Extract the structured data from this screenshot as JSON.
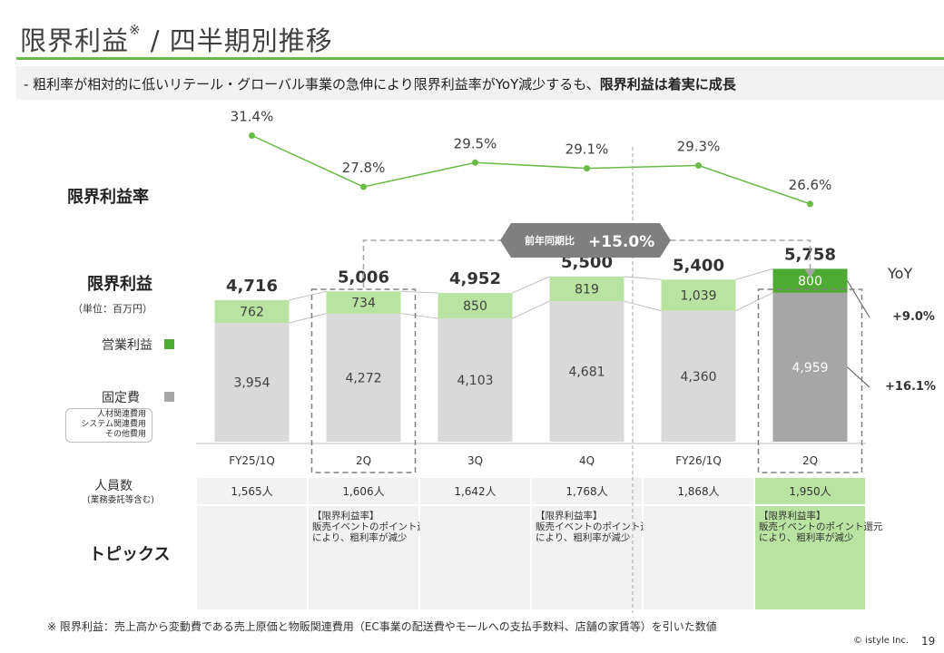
{
  "header": {
    "title": "限界利益",
    "title_mark": "※",
    "title_rest": " / 四半期別推移",
    "subtitle_plain": "- 粗利率が相対的に低いリテール・グローバル事業の急伸により限界利益率がYoY減少するも、",
    "subtitle_bold": "限界利益は着実に成長"
  },
  "labels": {
    "margin_rate": "限界利益率",
    "marginal_profit": "限界利益",
    "unit": "（単位：百万円）",
    "legend_operating": "営業利益",
    "legend_fixed": "固定費",
    "fixed_breakdown": [
      "人材関連費用",
      "システム関連費用",
      "その他費用"
    ],
    "headcount": "人員数",
    "headcount_note": "(業務委託等含む)",
    "topics": "トピックス",
    "yoy": "YoY",
    "yoy_profit": "+9.0%",
    "yoy_fixed": "+16.1%",
    "callout_label": "前年同期比",
    "callout_value": "+15.0%"
  },
  "chart_data": {
    "type": "bar",
    "categories": [
      "FY25/1Q",
      "2Q",
      "3Q",
      "4Q",
      "FY26/1Q",
      "2Q"
    ],
    "series": [
      {
        "name": "固定費",
        "values": [
          3954,
          4272,
          4103,
          4681,
          4360,
          4959
        ]
      },
      {
        "name": "営業利益",
        "values": [
          762,
          734,
          850,
          819,
          1039,
          800
        ]
      }
    ],
    "totals": [
      4716,
      5006,
      4952,
      5500,
      5400,
      5758
    ],
    "totals_text": [
      "4,716",
      "5,006",
      "4,952",
      "5,500",
      "5,400",
      "5,758"
    ],
    "fixed_text": [
      "3,954",
      "4,272",
      "4,103",
      "4,681",
      "4,360",
      "4,959"
    ],
    "profit_text": [
      "762",
      "734",
      "850",
      "819",
      "1,039",
      "800"
    ],
    "rate": {
      "name": "限界利益率",
      "values": [
        31.4,
        27.8,
        29.5,
        29.1,
        29.3,
        26.6
      ],
      "text": [
        "31.4%",
        "27.8%",
        "29.5%",
        "29.1%",
        "29.3%",
        "26.6%"
      ]
    },
    "headcount": [
      "1,565人",
      "1,606人",
      "1,642人",
      "1,768人",
      "1,868人",
      "1,950人"
    ],
    "topics": [
      "",
      "【限界利益率】\n販売イベントのポイント還元により、粗利率が減少",
      "",
      "【限界利益率】\n販売イベントのポイント還元により、粗利率が減少",
      "",
      "【限界利益率】\n販売イベントのポイント還元により、粗利率が減少"
    ],
    "highlight_index": 5,
    "colors": {
      "profit_light": "#b8e3a0",
      "profit_dark": "#4faa33",
      "fixed_light": "#d9d9d9",
      "fixed_dark": "#a6a6a6",
      "rate_line": "#6abb46",
      "accent": "#6abb46"
    }
  },
  "footer": {
    "note": "※ 限界利益：売上高から変動費である売上原価と物販関連費用（EC事業の配送費やモールへの支払手数料、店舗の家賃等）を引いた数値",
    "copyright": "© istyle Inc.",
    "page": "19"
  }
}
